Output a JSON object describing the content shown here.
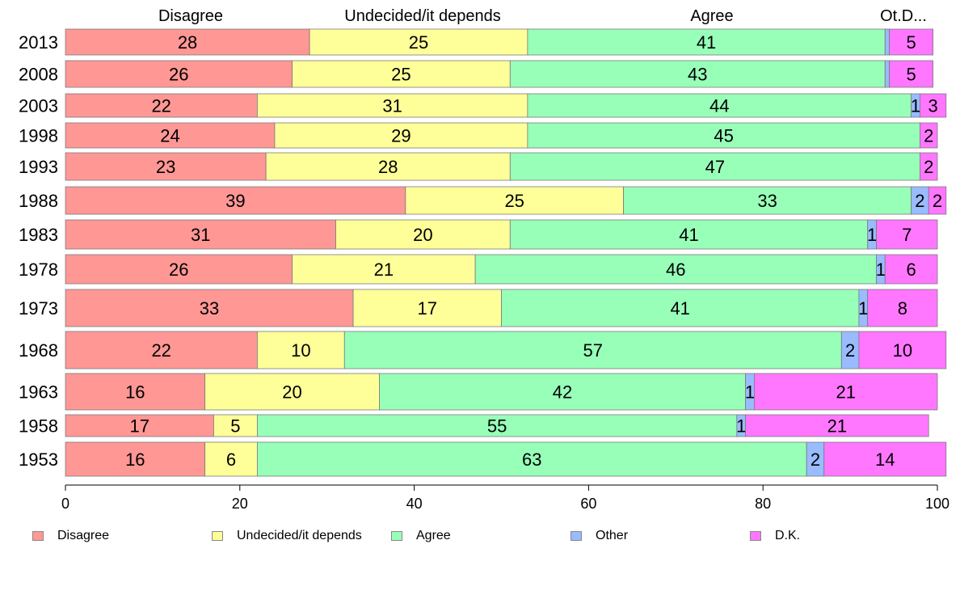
{
  "chart_data": {
    "type": "bar",
    "orientation": "horizontal",
    "stacked": true,
    "categories": [
      "2013",
      "2008",
      "2003",
      "1998",
      "1993",
      "1988",
      "1983",
      "1978",
      "1973",
      "1968",
      "1963",
      "1958",
      "1953"
    ],
    "series": [
      {
        "name": "Disagree",
        "color": "#ff9795",
        "values": [
          28,
          26,
          22,
          24,
          23,
          39,
          31,
          26,
          33,
          22,
          16,
          17,
          16
        ]
      },
      {
        "name": "Undecided/it depends",
        "color": "#ffff99",
        "values": [
          25,
          25,
          31,
          29,
          28,
          25,
          20,
          21,
          17,
          10,
          20,
          5,
          6
        ]
      },
      {
        "name": "Agree",
        "color": "#98ffb9",
        "values": [
          41,
          43,
          44,
          45,
          47,
          33,
          41,
          46,
          41,
          57,
          42,
          55,
          63
        ]
      },
      {
        "name": "Other",
        "color": "#99bbff",
        "values": [
          0.5,
          0.5,
          1,
          0,
          0,
          2,
          1,
          1,
          1,
          2,
          1,
          1,
          2
        ]
      },
      {
        "name": "D.K.",
        "color": "#ff77ff",
        "values": [
          5,
          5,
          3,
          2,
          2,
          2,
          7,
          6,
          8,
          10,
          21,
          21,
          14
        ]
      }
    ],
    "data_labels": [
      [
        "28",
        "25",
        "41",
        "",
        "5"
      ],
      [
        "26",
        "25",
        "43",
        "",
        "5"
      ],
      [
        "22",
        "31",
        "44",
        "1",
        "3"
      ],
      [
        "24",
        "29",
        "45",
        "",
        "2"
      ],
      [
        "23",
        "28",
        "47",
        "",
        "2"
      ],
      [
        "39",
        "25",
        "33",
        "2",
        "2"
      ],
      [
        "31",
        "20",
        "41",
        "1",
        "7"
      ],
      [
        "26",
        "21",
        "46",
        "1",
        "6"
      ],
      [
        "33",
        "17",
        "41",
        "1",
        "8"
      ],
      [
        "22",
        "10",
        "57",
        "2",
        "10"
      ],
      [
        "16",
        "20",
        "42",
        "1",
        "21"
      ],
      [
        "17",
        "5",
        "55",
        "1",
        "21"
      ],
      [
        "16",
        "6",
        "63",
        "2",
        "14"
      ]
    ],
    "top_labels": [
      "Disagree",
      "Undecided/it depends",
      "Agree",
      "Ot.D..."
    ],
    "x_ticks": [
      0,
      20,
      40,
      60,
      80,
      100
    ],
    "xlim": [
      0,
      100
    ],
    "legend_position": "bottom",
    "grid": false
  }
}
